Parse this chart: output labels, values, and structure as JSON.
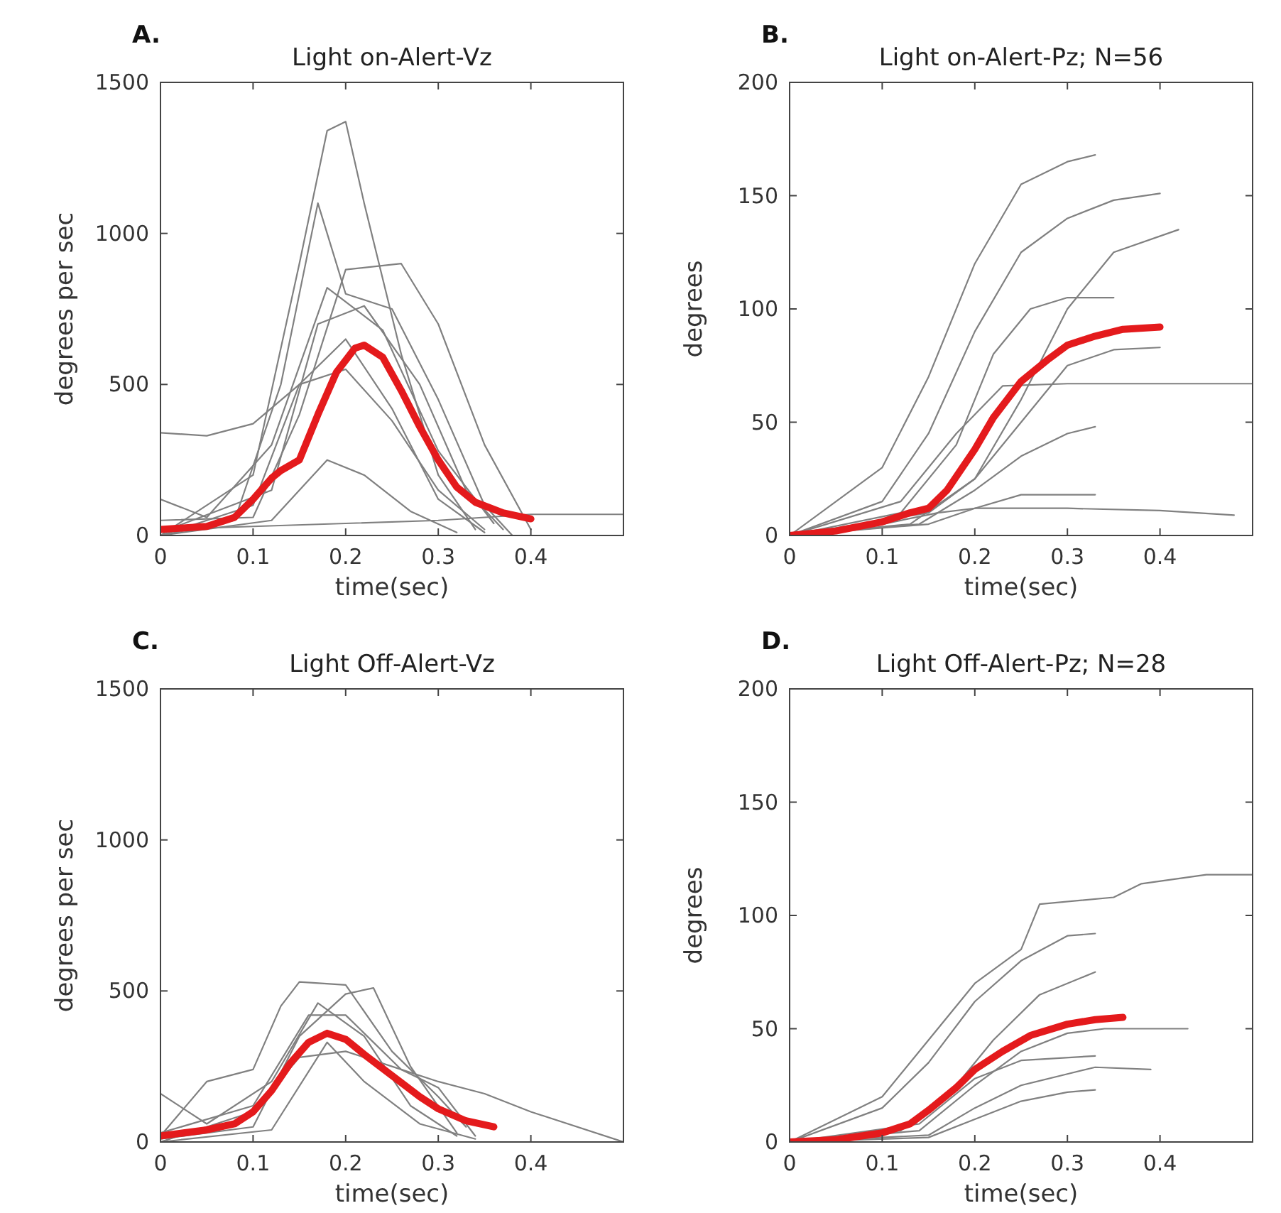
{
  "chart_data": [
    {
      "type": "line",
      "title": "Light on-Alert-Vz",
      "xlabel": "time(sec)",
      "ylabel": "degrees per sec",
      "annotations": [
        "A."
      ],
      "xlim": [
        0,
        0.5
      ],
      "ylim": [
        0,
        1500
      ],
      "xticks": [
        0,
        0.1,
        0.2,
        0.3,
        0.4
      ],
      "yticks": [
        0,
        500,
        1000,
        1500
      ],
      "series": [
        {
          "color": "#808080",
          "x": [
            0,
            0.1,
            0.15,
            0.18,
            0.2,
            0.22,
            0.26,
            0.3,
            0.34
          ],
          "values": [
            0,
            200,
            900,
            1340,
            1370,
            1100,
            600,
            200,
            20
          ]
        },
        {
          "color": "#808080",
          "x": [
            0,
            0.08,
            0.13,
            0.17,
            0.2,
            0.25,
            0.3,
            0.35,
            0.38
          ],
          "values": [
            0,
            50,
            500,
            1100,
            800,
            750,
            450,
            100,
            0
          ]
        },
        {
          "color": "#808080",
          "x": [
            0,
            0.05,
            0.1,
            0.15,
            0.2,
            0.25,
            0.3,
            0.35
          ],
          "values": [
            340,
            330,
            370,
            500,
            550,
            380,
            150,
            20
          ]
        },
        {
          "color": "#808080",
          "x": [
            0,
            0.1,
            0.15,
            0.2,
            0.26,
            0.3,
            0.35,
            0.4
          ],
          "values": [
            50,
            60,
            400,
            880,
            900,
            700,
            300,
            20
          ]
        },
        {
          "color": "#808080",
          "x": [
            0,
            0.12,
            0.18,
            0.22,
            0.27,
            0.32
          ],
          "values": [
            0,
            50,
            250,
            200,
            80,
            10
          ]
        },
        {
          "color": "#808080",
          "x": [
            0,
            0.1,
            0.15,
            0.2,
            0.25,
            0.3,
            0.35
          ],
          "values": [
            0,
            100,
            500,
            650,
            420,
            120,
            10
          ]
        },
        {
          "color": "#808080",
          "x": [
            0,
            0.12,
            0.17,
            0.22,
            0.28,
            0.33,
            0.37
          ],
          "values": [
            10,
            150,
            700,
            760,
            500,
            150,
            20
          ]
        },
        {
          "color": "#808080",
          "x": [
            0,
            0.1,
            0.2,
            0.3,
            0.4,
            0.5
          ],
          "values": [
            20,
            30,
            40,
            50,
            70,
            70
          ]
        },
        {
          "color": "#808080",
          "x": [
            0,
            0.05,
            0.12,
            0.18,
            0.24,
            0.3,
            0.36
          ],
          "values": [
            120,
            60,
            300,
            820,
            680,
            280,
            40
          ]
        },
        {
          "color": "#e41a1c",
          "x": [
            0,
            0.05,
            0.08,
            0.1,
            0.12,
            0.13,
            0.15,
            0.17,
            0.19,
            0.21,
            0.22,
            0.24,
            0.26,
            0.28,
            0.3,
            0.32,
            0.34,
            0.37,
            0.4
          ],
          "values": [
            20,
            30,
            60,
            120,
            190,
            215,
            250,
            400,
            540,
            620,
            630,
            590,
            480,
            360,
            250,
            160,
            110,
            75,
            55
          ]
        }
      ]
    },
    {
      "type": "line",
      "title": "Light on-Alert-Pz; N=56",
      "xlabel": "time(sec)",
      "ylabel": "degrees",
      "annotations": [
        "B."
      ],
      "xlim": [
        0,
        0.5
      ],
      "ylim": [
        0,
        200
      ],
      "xticks": [
        0,
        0.1,
        0.2,
        0.3,
        0.4
      ],
      "yticks": [
        0,
        50,
        100,
        150,
        200
      ],
      "series": [
        {
          "color": "#808080",
          "x": [
            0,
            0.1,
            0.15,
            0.2,
            0.25,
            0.3,
            0.33
          ],
          "values": [
            0,
            30,
            70,
            120,
            155,
            165,
            168
          ]
        },
        {
          "color": "#808080",
          "x": [
            0,
            0.1,
            0.15,
            0.2,
            0.25,
            0.3,
            0.35,
            0.4
          ],
          "values": [
            0,
            15,
            45,
            90,
            125,
            140,
            148,
            151
          ]
        },
        {
          "color": "#808080",
          "x": [
            0,
            0.12,
            0.18,
            0.22,
            0.26,
            0.3,
            0.35
          ],
          "values": [
            0,
            10,
            40,
            80,
            100,
            105,
            105
          ]
        },
        {
          "color": "#808080",
          "x": [
            0,
            0.13,
            0.2,
            0.25,
            0.3,
            0.35,
            0.4
          ],
          "values": [
            0,
            5,
            25,
            50,
            75,
            82,
            83
          ]
        },
        {
          "color": "#808080",
          "x": [
            0,
            0.14,
            0.2,
            0.25,
            0.3,
            0.33
          ],
          "values": [
            0,
            5,
            20,
            35,
            45,
            48
          ]
        },
        {
          "color": "#808080",
          "x": [
            0,
            0.1,
            0.16,
            0.2,
            0.3,
            0.4,
            0.48
          ],
          "values": [
            0,
            5,
            10,
            12,
            12,
            11,
            9
          ]
        },
        {
          "color": "#808080",
          "x": [
            0,
            0.12,
            0.18,
            0.23,
            0.3,
            0.4,
            0.5
          ],
          "values": [
            0,
            15,
            45,
            66,
            67,
            67,
            67
          ]
        },
        {
          "color": "#808080",
          "x": [
            0,
            0.15,
            0.2,
            0.25,
            0.3,
            0.35,
            0.42
          ],
          "values": [
            0,
            10,
            25,
            60,
            100,
            125,
            135
          ]
        },
        {
          "color": "#808080",
          "x": [
            0,
            0.15,
            0.2,
            0.25,
            0.33
          ],
          "values": [
            0,
            5,
            12,
            18,
            18
          ]
        },
        {
          "color": "#e41a1c",
          "x": [
            0,
            0.05,
            0.1,
            0.13,
            0.15,
            0.17,
            0.2,
            0.22,
            0.25,
            0.28,
            0.3,
            0.33,
            0.36,
            0.4
          ],
          "values": [
            0,
            2,
            6,
            10,
            12,
            20,
            38,
            52,
            68,
            78,
            84,
            88,
            91,
            92
          ]
        }
      ]
    },
    {
      "type": "line",
      "title": "Light Off-Alert-Vz",
      "xlabel": "time(sec)",
      "ylabel": "degrees per sec",
      "annotations": [
        "C."
      ],
      "xlim": [
        0,
        0.5
      ],
      "ylim": [
        0,
        1500
      ],
      "xticks": [
        0,
        0.1,
        0.2,
        0.3,
        0.4
      ],
      "yticks": [
        0,
        500,
        1000,
        1500
      ],
      "series": [
        {
          "color": "#808080",
          "x": [
            0,
            0.05,
            0.1,
            0.13,
            0.15,
            0.2,
            0.25,
            0.3,
            0.33
          ],
          "values": [
            20,
            200,
            240,
            450,
            530,
            520,
            300,
            150,
            50
          ]
        },
        {
          "color": "#808080",
          "x": [
            0,
            0.1,
            0.15,
            0.2,
            0.23,
            0.27,
            0.32
          ],
          "values": [
            10,
            50,
            350,
            490,
            510,
            250,
            30
          ]
        },
        {
          "color": "#808080",
          "x": [
            0,
            0.1,
            0.15,
            0.2,
            0.25,
            0.3,
            0.35,
            0.4,
            0.5
          ],
          "values": [
            0,
            100,
            280,
            300,
            250,
            200,
            160,
            100,
            0
          ]
        },
        {
          "color": "#808080",
          "x": [
            0,
            0.05,
            0.12,
            0.17,
            0.22,
            0.27,
            0.32
          ],
          "values": [
            160,
            60,
            200,
            460,
            350,
            120,
            20
          ]
        },
        {
          "color": "#808080",
          "x": [
            0,
            0.12,
            0.18,
            0.22,
            0.28,
            0.34
          ],
          "values": [
            0,
            40,
            330,
            200,
            60,
            10
          ]
        },
        {
          "color": "#808080",
          "x": [
            0,
            0.1,
            0.16,
            0.2,
            0.26,
            0.3,
            0.34
          ],
          "values": [
            30,
            120,
            420,
            420,
            240,
            180,
            20
          ]
        },
        {
          "color": "#e41a1c",
          "x": [
            0,
            0.05,
            0.08,
            0.1,
            0.12,
            0.14,
            0.16,
            0.18,
            0.2,
            0.22,
            0.25,
            0.28,
            0.3,
            0.33,
            0.36
          ],
          "values": [
            20,
            40,
            60,
            100,
            170,
            260,
            330,
            360,
            340,
            290,
            220,
            150,
            110,
            70,
            50
          ]
        }
      ]
    },
    {
      "type": "line",
      "title": "Light Off-Alert-Pz; N=28",
      "xlabel": "time(sec)",
      "ylabel": "degrees",
      "annotations": [
        "D."
      ],
      "xlim": [
        0,
        0.5
      ],
      "ylim": [
        0,
        200
      ],
      "xticks": [
        0,
        0.1,
        0.2,
        0.3,
        0.4
      ],
      "yticks": [
        0,
        50,
        100,
        150,
        200
      ],
      "series": [
        {
          "color": "#808080",
          "x": [
            0,
            0.1,
            0.15,
            0.2,
            0.25,
            0.27,
            0.35,
            0.38,
            0.45,
            0.5
          ],
          "values": [
            0,
            20,
            45,
            70,
            85,
            105,
            108,
            114,
            118,
            118
          ]
        },
        {
          "color": "#808080",
          "x": [
            0,
            0.1,
            0.15,
            0.2,
            0.25,
            0.3,
            0.33
          ],
          "values": [
            0,
            15,
            35,
            62,
            80,
            91,
            92
          ]
        },
        {
          "color": "#808080",
          "x": [
            0,
            0.12,
            0.17,
            0.22,
            0.27,
            0.33
          ],
          "values": [
            0,
            5,
            20,
            45,
            65,
            75
          ]
        },
        {
          "color": "#808080",
          "x": [
            0,
            0.14,
            0.2,
            0.25,
            0.3,
            0.34,
            0.43
          ],
          "values": [
            0,
            5,
            25,
            40,
            48,
            50,
            50
          ]
        },
        {
          "color": "#808080",
          "x": [
            0,
            0.15,
            0.2,
            0.25,
            0.3,
            0.33,
            0.39
          ],
          "values": [
            0,
            3,
            15,
            25,
            30,
            33,
            32
          ]
        },
        {
          "color": "#808080",
          "x": [
            0,
            0.15,
            0.2,
            0.25,
            0.3,
            0.33
          ],
          "values": [
            0,
            2,
            10,
            18,
            22,
            23
          ]
        },
        {
          "color": "#808080",
          "x": [
            0,
            0.14,
            0.2,
            0.25,
            0.33
          ],
          "values": [
            0,
            8,
            28,
            36,
            38
          ]
        },
        {
          "color": "#e41a1c",
          "x": [
            0,
            0.05,
            0.1,
            0.13,
            0.15,
            0.18,
            0.2,
            0.23,
            0.26,
            0.3,
            0.33,
            0.36
          ],
          "values": [
            0,
            1,
            4,
            8,
            14,
            24,
            32,
            40,
            47,
            52,
            54,
            55
          ]
        }
      ]
    }
  ]
}
